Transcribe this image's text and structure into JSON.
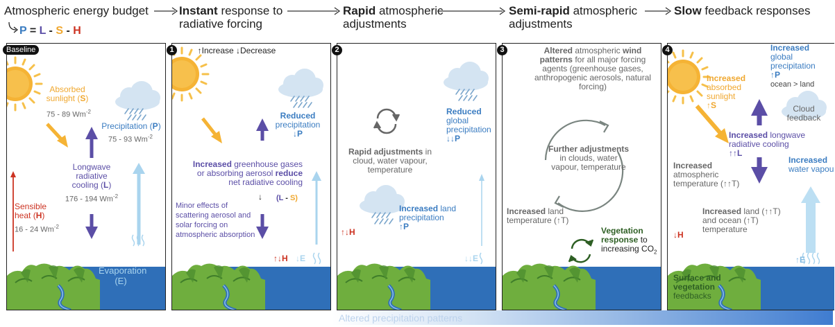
{
  "headers": {
    "h1": {
      "bold": "",
      "rest": "Atmospheric energy budget"
    },
    "h2": {
      "bold": "Instant",
      "rest": " response to",
      "line2": "radiative forcing"
    },
    "h3": {
      "bold": "Rapid",
      "rest": " atmospheric",
      "line2": "adjustments"
    },
    "h4": {
      "bold": "Semi-rapid",
      "rest": " atmospheric",
      "line2": "adjustments"
    },
    "h5": {
      "bold": "Slow",
      "rest": " feedback responses"
    }
  },
  "equation": {
    "p": "P",
    "eq": " = ",
    "l": "L",
    "m1": " - ",
    "s": "S",
    "m2": " - ",
    "h": "H"
  },
  "panel_labels": {
    "baseline": "Baseline",
    "n1": "1",
    "n2": "2",
    "n3": "3",
    "n4": "4"
  },
  "panel0": {
    "absorbed_l1": "Absorbed",
    "absorbed_l2": "sunlight (",
    "absorbed_s": "S",
    "absorbed_close": ")",
    "absorbed_val": "75 - 89 Wm",
    "precip_label": "Precipitation (",
    "precip_p": "P",
    "precip_close": ")",
    "precip_val": "75 - 93 Wm",
    "lw_l1": "Longwave",
    "lw_l2": "radiative",
    "lw_l3": "cooling (",
    "lw_L": "L",
    "lw_close": ")",
    "lw_val": "176 - 194 Wm",
    "sens_l1": "Sensible",
    "sens_l2": "heat (",
    "sens_h": "H",
    "sens_close": ")",
    "sens_val": "16 - 24 Wm",
    "evap_l1": "Evaporation",
    "evap_l2": "(E)",
    "sup": "-2"
  },
  "panel1": {
    "legend": "↑Increase ↓Decrease",
    "reduced_l1": "Reduced",
    "reduced_l2": "precipitation",
    "reduced_l3": "↓P",
    "inc_bold": "Increased",
    "inc_rest": " greenhouse gases",
    "inc_l2": "or absorbing aerosol ",
    "inc_l2b": "reduce",
    "inc_l3": "net radiative cooling",
    "arrow_down": "↓",
    "ls": "(L - S)",
    "minor_l1": "Minor effects of",
    "minor_l2": "scattering aerosol and",
    "minor_l3": "solar forcing on",
    "minor_l4": "atmospheric absorption",
    "h_label": "↑↓H",
    "e_label": "↓E"
  },
  "panel2": {
    "reduced_l1": "Reduced",
    "reduced_l2": "global",
    "reduced_l3": "precipitation",
    "reduced_l4": "↓↓P",
    "rapid_bold": "Rapid adjustments",
    "rapid_rest": " in",
    "rapid_l2": "cloud, water vapour,",
    "rapid_l3": "temperature",
    "inc_bold": "Increased",
    "inc_rest": " land",
    "inc_l2": "precipitation",
    "inc_l3": "↑P",
    "h_label": "↑↓H",
    "e_label": "↓↓E"
  },
  "panel3": {
    "alt_b1": "Altered",
    "alt_r1": " atmospheric ",
    "alt_b2": "wind",
    "alt_b3": "patterns",
    "alt_r2": " for all major forcing",
    "alt_l3": "agents (greenhouse gases,",
    "alt_l4": "anthropogenic aerosols, natural",
    "alt_l5": "forcing)",
    "further_bold": "Further adjustments",
    "further_l2": "in clouds, water",
    "further_l3": "vapour, temperature",
    "land_bold": "Increased",
    "land_rest": " land",
    "land_l2": "temperature (↑T)",
    "veg_b1": "Vegetation",
    "veg_b2": "response",
    "veg_r2": " to",
    "veg_l3": "increasing CO",
    "veg_sub": "2"
  },
  "panel4": {
    "abs_bold": "Increased",
    "abs_l2": "absorbed",
    "abs_l3": "sunlight",
    "abs_l4": "↑S",
    "glob_bold": "Increased",
    "glob_l2": "global",
    "glob_l3": "precipitation",
    "glob_l4": "↑P",
    "glob_l5": "ocean > land",
    "cloud_l1": "Cloud",
    "cloud_l2": "feedback",
    "lw_bold": "Increased",
    "lw_rest": " longwave",
    "lw_l2": "radiative cooling",
    "lw_l3": "↑↑L",
    "atm_bold": "Increased",
    "atm_l2": "atmospheric",
    "atm_l3": "temperature (↑↑T)",
    "wv_bold": "Increased",
    "wv_l2": "water vapour",
    "land_bold": "Increased",
    "land_rest": " land (↑↑T)",
    "land_l2": "and ocean (↑T)",
    "land_l3": "temperature",
    "h_label": "↓H",
    "e_label": "↑E",
    "surf_b1": "Surface and",
    "surf_b2": "vegetation",
    "surf_l3": "feedbacks"
  },
  "footer": {
    "altered_precip": "Altered precipitation patterns"
  },
  "colors": {
    "sunlight": "#f0a830",
    "longwave": "#5b4ea6",
    "precip": "#3a7cc1",
    "sensible": "#cc3322",
    "evap": "#a9d4ee",
    "land": "#6fae3e",
    "ocean": "#2f6fb8"
  },
  "icons": [
    "sun-icon",
    "cloud-rain-icon",
    "arrow-up-icon",
    "arrow-down-icon",
    "cycle-arrows-icon",
    "evaporation-squiggle-icon",
    "vegetation-cycle-icon"
  ]
}
